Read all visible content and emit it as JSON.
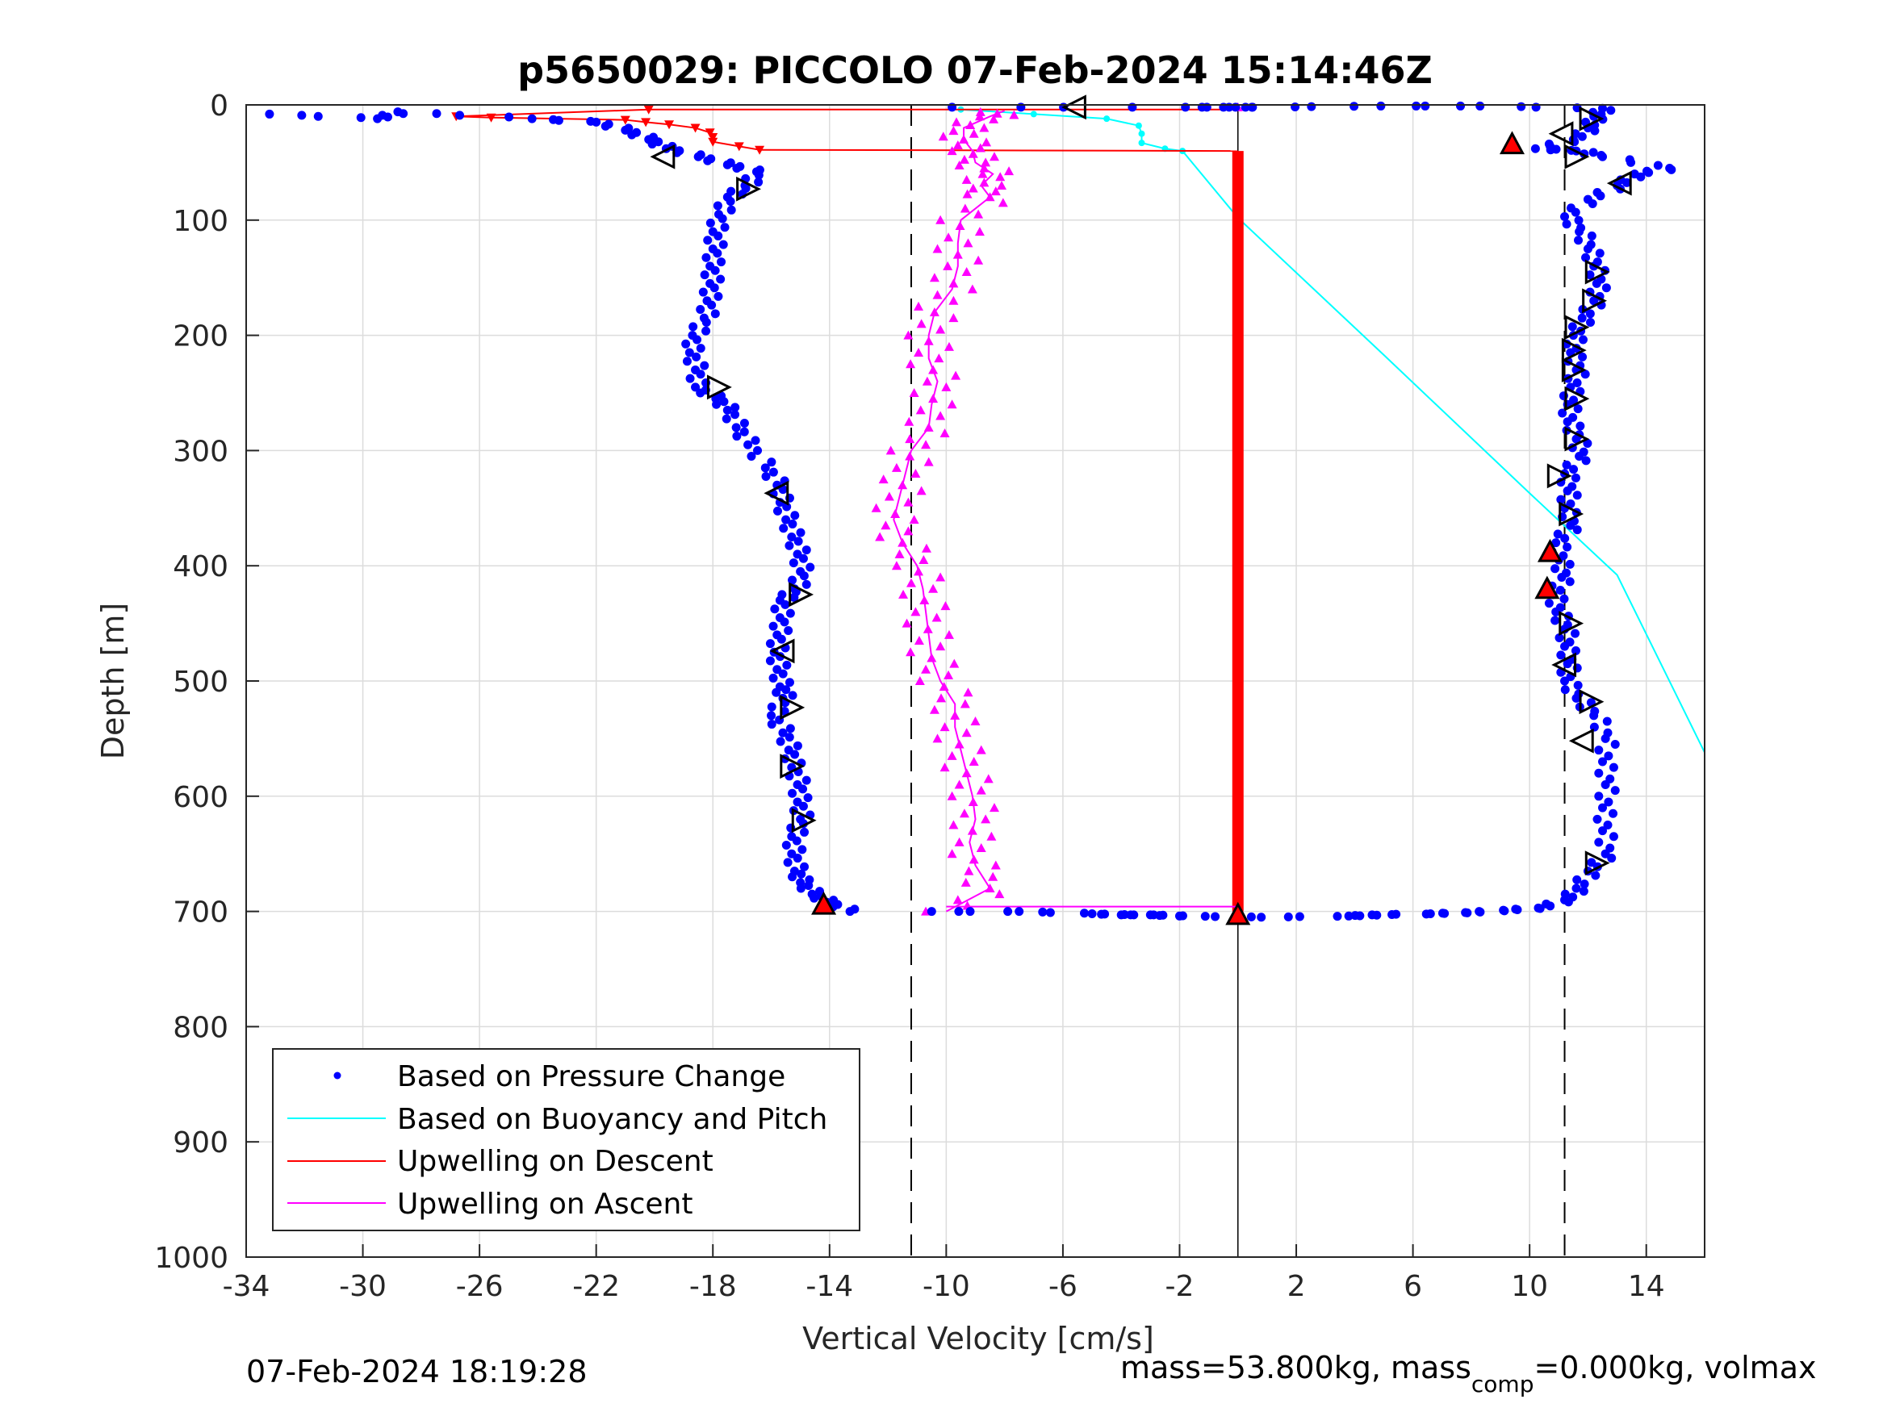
{
  "chart_data": {
    "type": "scatter",
    "title": "p5650029: PICCOLO 07-Feb-2024 15:14:46Z",
    "xlabel": "Vertical Velocity [cm/s]",
    "ylabel": "Depth [m]",
    "xlim": [
      -34,
      16
    ],
    "ylim": [
      0,
      1000
    ],
    "y_reversed": true,
    "grid": true,
    "x_ticks": [
      -34,
      -30,
      -26,
      -22,
      -18,
      -14,
      -10,
      -6,
      -2,
      2,
      6,
      10,
      14
    ],
    "y_ticks": [
      0,
      100,
      200,
      300,
      400,
      500,
      600,
      700,
      800,
      900,
      1000
    ],
    "x_tick_labels": [
      "-34",
      "-30",
      "-26",
      "-22",
      "-18",
      "-14",
      "-10",
      "-6",
      "-2",
      "2",
      "6",
      "10",
      "14"
    ],
    "y_tick_labels": [
      "0",
      "100",
      "200",
      "300",
      "400",
      "500",
      "600",
      "700",
      "800",
      "900",
      "1000"
    ],
    "legend": {
      "placement": "bottom-left",
      "entries": [
        {
          "label": "Based on Pressure Change",
          "color": "#0000ff",
          "marker": "dot"
        },
        {
          "label": "Based on Buoyancy and Pitch",
          "color": "#00ffff",
          "marker": "line"
        },
        {
          "label": "Upwelling on Descent",
          "color": "#ff0000",
          "marker": "line"
        },
        {
          "label": "Upwelling on Ascent",
          "color": "#ff00ff",
          "marker": "line"
        }
      ]
    },
    "reference_lines": {
      "dashed_x": [
        -11.2,
        11.2
      ],
      "solid_x": [
        0
      ]
    },
    "series": [
      {
        "name": "Based on Pressure Change",
        "kind": "descent",
        "color": "#0000ff",
        "points": [
          [
            -33.2,
            8
          ],
          [
            -29.5,
            12
          ],
          [
            -28.8,
            6
          ],
          [
            -24.2,
            12
          ],
          [
            -22,
            15
          ],
          [
            -21,
            22
          ],
          [
            -20.2,
            30
          ],
          [
            -19.6,
            38
          ],
          [
            -18.5,
            45
          ],
          [
            -17.5,
            52
          ],
          [
            -16.5,
            58
          ],
          [
            -16.9,
            70
          ],
          [
            -17.5,
            80
          ],
          [
            -17.8,
            95
          ],
          [
            -18,
            110
          ],
          [
            -18,
            125
          ],
          [
            -18.1,
            140
          ],
          [
            -18.1,
            155
          ],
          [
            -18.2,
            170
          ],
          [
            -18.3,
            185
          ],
          [
            -18.7,
            200
          ],
          [
            -18.8,
            215
          ],
          [
            -18.6,
            230
          ],
          [
            -18.6,
            245
          ],
          [
            -17.9,
            255
          ],
          [
            -17.5,
            265
          ],
          [
            -17.2,
            280
          ],
          [
            -16.8,
            295
          ],
          [
            -16.2,
            315
          ],
          [
            -15.8,
            330
          ],
          [
            -15.7,
            345
          ],
          [
            -15.5,
            360
          ],
          [
            -15.3,
            375
          ],
          [
            -15.1,
            390
          ],
          [
            -15,
            405
          ],
          [
            -15.2,
            420
          ],
          [
            -15.7,
            430
          ],
          [
            -15.7,
            445
          ],
          [
            -15.8,
            460
          ],
          [
            -15.9,
            475
          ],
          [
            -15.8,
            490
          ],
          [
            -15.7,
            505
          ],
          [
            -15.6,
            515
          ],
          [
            -16,
            530
          ],
          [
            -15.6,
            545
          ],
          [
            -15.4,
            560
          ],
          [
            -15.3,
            575
          ],
          [
            -15.1,
            590
          ],
          [
            -15.1,
            605
          ],
          [
            -15,
            620
          ],
          [
            -15.3,
            635
          ],
          [
            -15.3,
            650
          ],
          [
            -15.2,
            665
          ],
          [
            -15,
            675
          ],
          [
            -14.6,
            685
          ],
          [
            -14.1,
            692
          ],
          [
            -13.3,
            700
          ]
        ]
      },
      {
        "name": "Based on Pressure Change",
        "kind": "ascent",
        "color": "#0000ff",
        "points": [
          [
            -10.5,
            700
          ],
          [
            -7.5,
            700
          ],
          [
            -5,
            702
          ],
          [
            -4,
            703
          ],
          [
            -3,
            703
          ],
          [
            -2,
            704
          ],
          [
            0.8,
            705
          ],
          [
            3.8,
            704
          ],
          [
            4.6,
            703
          ],
          [
            6.6,
            702
          ],
          [
            7.8,
            701
          ],
          [
            9.1,
            699
          ],
          [
            10.3,
            697
          ],
          [
            11.2,
            690
          ],
          [
            11.6,
            680
          ],
          [
            12,
            665
          ],
          [
            12.6,
            650
          ],
          [
            12.5,
            630
          ],
          [
            12.5,
            610
          ],
          [
            12.6,
            590
          ],
          [
            12.5,
            570
          ],
          [
            12.6,
            550
          ],
          [
            12.2,
            530
          ],
          [
            11.6,
            515
          ],
          [
            11.2,
            500
          ],
          [
            11.3,
            485
          ],
          [
            11.2,
            470
          ],
          [
            11.2,
            455
          ],
          [
            10.9,
            440
          ],
          [
            10.8,
            425
          ],
          [
            11.1,
            410
          ],
          [
            11,
            395
          ],
          [
            10.9,
            380
          ],
          [
            11.4,
            365
          ],
          [
            11.2,
            350
          ],
          [
            11.3,
            335
          ],
          [
            11.2,
            320
          ],
          [
            11.7,
            305
          ],
          [
            11.6,
            290
          ],
          [
            11.3,
            275
          ],
          [
            11.3,
            260
          ],
          [
            11.4,
            245
          ],
          [
            11.6,
            230
          ],
          [
            11.4,
            215
          ],
          [
            11.5,
            200
          ],
          [
            11.8,
            185
          ],
          [
            12.2,
            170
          ],
          [
            12.3,
            155
          ],
          [
            12.2,
            140
          ],
          [
            12.0,
            125
          ],
          [
            11.7,
            110
          ],
          [
            11.2,
            97
          ],
          [
            12,
            82
          ],
          [
            13,
            70
          ],
          [
            13.6,
            60
          ],
          [
            14.8,
            55
          ],
          [
            12.5,
            45
          ],
          [
            11.6,
            40
          ],
          [
            10.2,
            38
          ],
          [
            11.5,
            30
          ],
          [
            12,
            20
          ],
          [
            12.2,
            10
          ],
          [
            12.5,
            3
          ],
          [
            8.3,
            1
          ],
          [
            4.9,
            1
          ],
          [
            0.5,
            2
          ],
          [
            -0.3,
            2
          ],
          [
            -1.8,
            2
          ],
          [
            -9.8,
            2
          ]
        ]
      },
      {
        "name": "Based on Buoyancy and Pitch",
        "color": "#00ffff",
        "points": [
          [
            -9.5,
            4
          ],
          [
            -7,
            8
          ],
          [
            -4.5,
            12
          ],
          [
            -3.4,
            18
          ],
          [
            -3.3,
            25
          ],
          [
            -3.3,
            33
          ],
          [
            -2.5,
            38
          ],
          [
            -1.9,
            40
          ],
          [
            0,
            98
          ],
          [
            5,
            217
          ],
          [
            10,
            337
          ],
          [
            13,
            408
          ],
          [
            16,
            562
          ]
        ]
      },
      {
        "name": "Upwelling on Descent",
        "color": "#ff0000",
        "points": [
          [
            -20.2,
            4
          ],
          [
            -26.8,
            10
          ],
          [
            -25.6,
            11
          ],
          [
            -21,
            13
          ],
          [
            -20.3,
            15
          ],
          [
            -19.5,
            17
          ],
          [
            -18.6,
            20
          ],
          [
            -18.1,
            24
          ],
          [
            -18,
            28
          ],
          [
            -18,
            32
          ],
          [
            -17.1,
            36
          ],
          [
            -16.4,
            39
          ]
        ],
        "column_x": 0,
        "column_ylim": [
          40,
          700
        ]
      },
      {
        "name": "Upwelling on Ascent",
        "color": "#ff00ff",
        "points": [
          [
            -10,
            700
          ],
          [
            -8.5,
            680
          ],
          [
            -9,
            660
          ],
          [
            -9.2,
            640
          ],
          [
            -9,
            620
          ],
          [
            -9.1,
            600
          ],
          [
            -9.3,
            580
          ],
          [
            -9.5,
            560
          ],
          [
            -9.7,
            540
          ],
          [
            -9.7,
            520
          ],
          [
            -10.2,
            500
          ],
          [
            -10.5,
            480
          ],
          [
            -10.6,
            460
          ],
          [
            -10.7,
            440
          ],
          [
            -10.8,
            420
          ],
          [
            -11,
            400
          ],
          [
            -11.5,
            380
          ],
          [
            -11.8,
            360
          ],
          [
            -11.6,
            340
          ],
          [
            -11.4,
            320
          ],
          [
            -11.2,
            300
          ],
          [
            -10.6,
            280
          ],
          [
            -10.5,
            260
          ],
          [
            -10.3,
            240
          ],
          [
            -10.6,
            220
          ],
          [
            -10.6,
            200
          ],
          [
            -10.4,
            180
          ],
          [
            -9.8,
            160
          ],
          [
            -9.6,
            140
          ],
          [
            -9.6,
            120
          ],
          [
            -9.5,
            100
          ],
          [
            -8.5,
            80
          ],
          [
            -8.8,
            70
          ],
          [
            -8.4,
            60
          ],
          [
            -9,
            50
          ],
          [
            -9.1,
            40
          ],
          [
            -9.4,
            30
          ],
          [
            -9.4,
            20
          ],
          [
            -8.5,
            10
          ],
          [
            -8,
            5
          ]
        ],
        "surface_point": [
          0,
          2
        ]
      }
    ],
    "pitch_markers": [
      {
        "x": -5.6,
        "y": 2,
        "dir": "left"
      },
      {
        "x": -19.7,
        "y": 45,
        "dir": "left"
      },
      {
        "x": -16.8,
        "y": 73,
        "dir": "right"
      },
      {
        "x": -17.8,
        "y": 245,
        "dir": "right"
      },
      {
        "x": -15.8,
        "y": 337,
        "dir": "left"
      },
      {
        "x": -15,
        "y": 425,
        "dir": "right"
      },
      {
        "x": -15.6,
        "y": 474,
        "dir": "left"
      },
      {
        "x": -15.3,
        "y": 523,
        "dir": "right"
      },
      {
        "x": -15.3,
        "y": 574,
        "dir": "right"
      },
      {
        "x": -14.9,
        "y": 621,
        "dir": "right"
      },
      {
        "x": -14.2,
        "y": 694,
        "dir": "up-red"
      },
      {
        "x": 0,
        "y": 703,
        "dir": "up-red"
      },
      {
        "x": 9.4,
        "y": 34,
        "dir": "up-red"
      },
      {
        "x": 12.1,
        "y": 12,
        "dir": "right"
      },
      {
        "x": 11.1,
        "y": 25,
        "dir": "left"
      },
      {
        "x": 11.6,
        "y": 45,
        "dir": "right"
      },
      {
        "x": 13.1,
        "y": 68,
        "dir": "left"
      },
      {
        "x": 12.3,
        "y": 145,
        "dir": "right"
      },
      {
        "x": 12.2,
        "y": 170,
        "dir": "right"
      },
      {
        "x": 11.6,
        "y": 193,
        "dir": "right"
      },
      {
        "x": 11.5,
        "y": 213,
        "dir": "right"
      },
      {
        "x": 11.5,
        "y": 230,
        "dir": "right"
      },
      {
        "x": 11.6,
        "y": 255,
        "dir": "right"
      },
      {
        "x": 11.6,
        "y": 290,
        "dir": "right"
      },
      {
        "x": 11,
        "y": 322,
        "dir": "right"
      },
      {
        "x": 11.4,
        "y": 355,
        "dir": "right"
      },
      {
        "x": 10.7,
        "y": 388,
        "dir": "up-red"
      },
      {
        "x": 10.6,
        "y": 420,
        "dir": "up-red"
      },
      {
        "x": 11.4,
        "y": 450,
        "dir": "right"
      },
      {
        "x": 11.2,
        "y": 486,
        "dir": "left"
      },
      {
        "x": 12.1,
        "y": 518,
        "dir": "right"
      },
      {
        "x": 11.8,
        "y": 552,
        "dir": "left"
      },
      {
        "x": 12.3,
        "y": 658,
        "dir": "right"
      }
    ]
  },
  "footer": {
    "timestamp": "07-Feb-2024 18:19:28",
    "mass_text_a": "mass=53.800kg, mass",
    "mass_sub": "comp",
    "mass_text_b": "=0.000kg, volmax"
  }
}
